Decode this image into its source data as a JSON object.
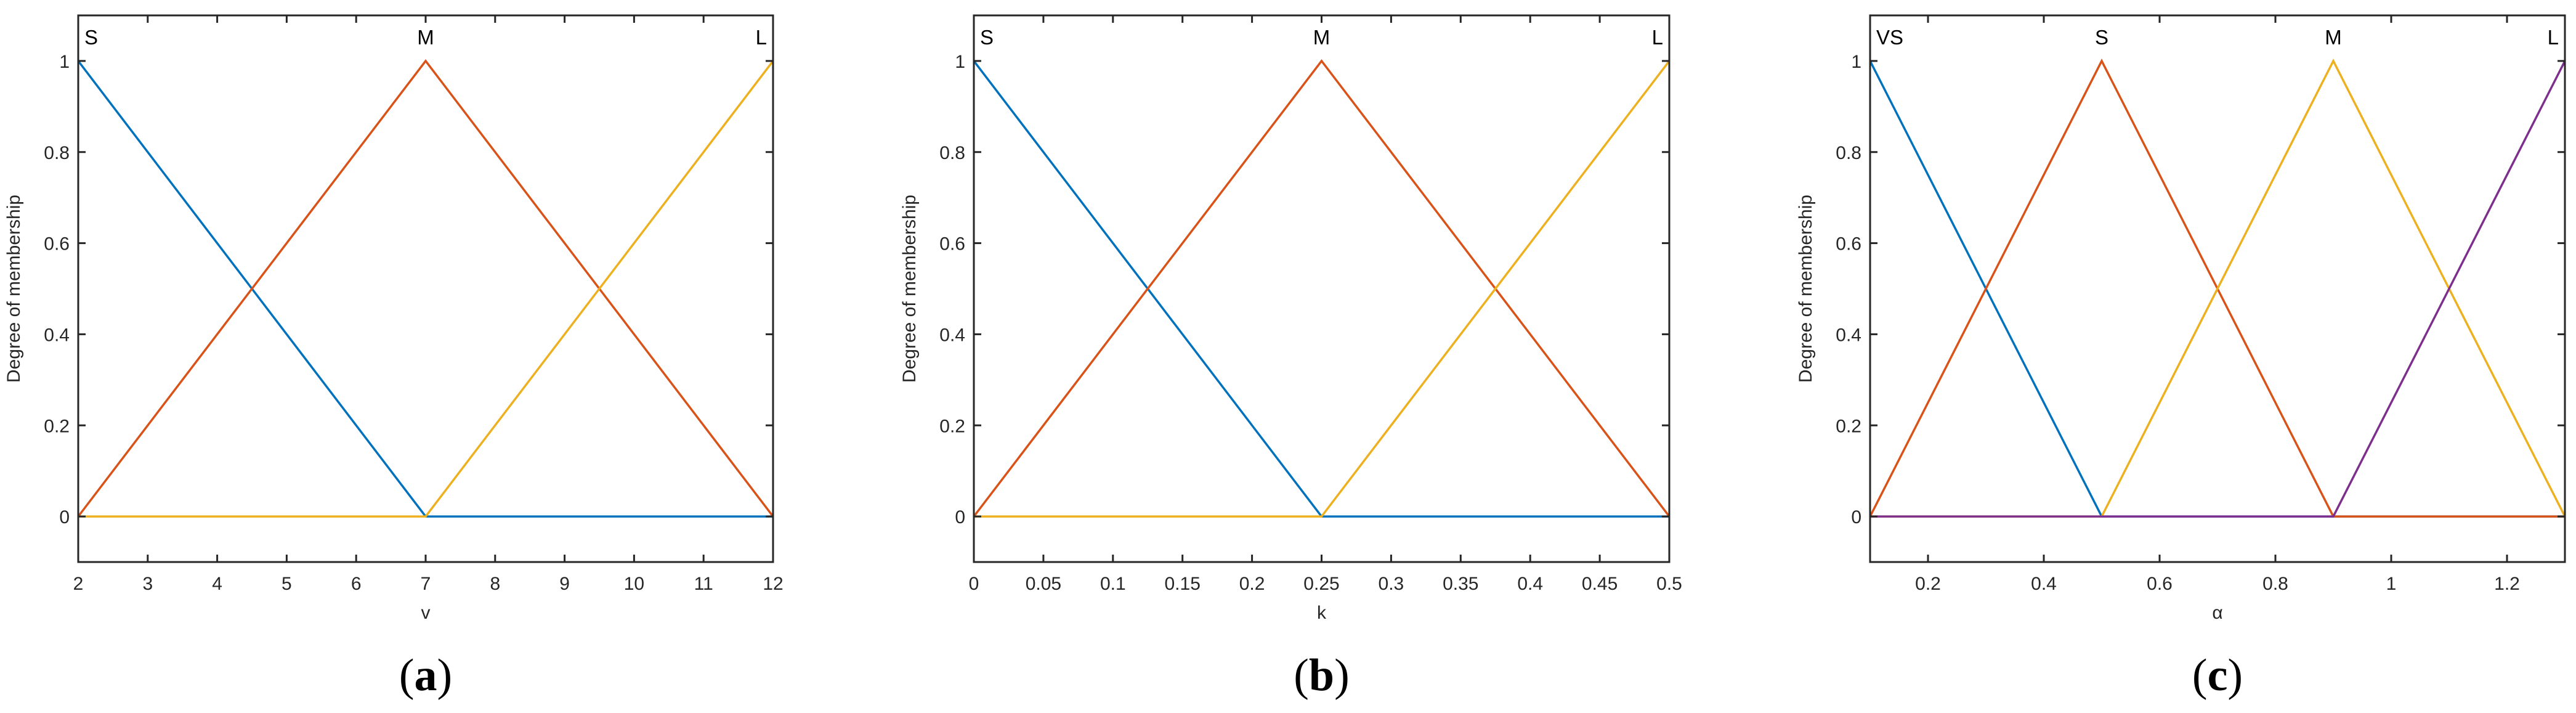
{
  "chart_data": [
    {
      "type": "line",
      "panel_label": "a",
      "xlabel": "v",
      "ylabel": "Degree of membership",
      "xlim": [
        2,
        12
      ],
      "ylim": [
        -0.1,
        1.1
      ],
      "xticks": [
        2,
        3,
        4,
        5,
        6,
        7,
        8,
        9,
        10,
        11,
        12
      ],
      "xtick_labels": [
        "2",
        "3",
        "4",
        "5",
        "6",
        "7",
        "8",
        "9",
        "10",
        "11",
        "12"
      ],
      "yticks": [
        0,
        0.2,
        0.4,
        0.6,
        0.8,
        1
      ],
      "ytick_labels": [
        "0",
        "0.2",
        "0.4",
        "0.6",
        "0.8",
        "1"
      ],
      "grid": false,
      "series": [
        {
          "name": "S",
          "color": "#0072BD",
          "x": [
            2,
            7,
            12
          ],
          "y": [
            1,
            0,
            0
          ]
        },
        {
          "name": "M",
          "color": "#D95319",
          "x": [
            2,
            7,
            12
          ],
          "y": [
            0,
            1,
            0
          ]
        },
        {
          "name": "L",
          "color": "#EDB120",
          "x": [
            2,
            7,
            12
          ],
          "y": [
            0,
            0,
            1
          ]
        }
      ]
    },
    {
      "type": "line",
      "panel_label": "b",
      "xlabel": "k",
      "ylabel": "Degree of membership",
      "xlim": [
        0,
        0.5
      ],
      "ylim": [
        -0.1,
        1.1
      ],
      "xticks": [
        0,
        0.05,
        0.1,
        0.15,
        0.2,
        0.25,
        0.3,
        0.35,
        0.4,
        0.45,
        0.5
      ],
      "xtick_labels": [
        "0",
        "0.05",
        "0.1",
        "0.15",
        "0.2",
        "0.25",
        "0.3",
        "0.35",
        "0.4",
        "0.45",
        "0.5"
      ],
      "yticks": [
        0,
        0.2,
        0.4,
        0.6,
        0.8,
        1
      ],
      "ytick_labels": [
        "0",
        "0.2",
        "0.4",
        "0.6",
        "0.8",
        "1"
      ],
      "grid": false,
      "series": [
        {
          "name": "S",
          "color": "#0072BD",
          "x": [
            0,
            0.25,
            0.5
          ],
          "y": [
            1,
            0,
            0
          ]
        },
        {
          "name": "M",
          "color": "#D95319",
          "x": [
            0,
            0.25,
            0.5
          ],
          "y": [
            0,
            1,
            0
          ]
        },
        {
          "name": "L",
          "color": "#EDB120",
          "x": [
            0,
            0.25,
            0.5
          ],
          "y": [
            0,
            0,
            1
          ]
        }
      ]
    },
    {
      "type": "line",
      "panel_label": "c",
      "xlabel": "α",
      "ylabel": "Degree of membership",
      "xlim": [
        0.1,
        1.3
      ],
      "ylim": [
        -0.1,
        1.1
      ],
      "xticks": [
        0.2,
        0.4,
        0.6,
        0.8,
        1,
        1.2
      ],
      "xtick_labels": [
        "0.2",
        "0.4",
        "0.6",
        "0.8",
        "1",
        "1.2"
      ],
      "yticks": [
        0,
        0.2,
        0.4,
        0.6,
        0.8,
        1
      ],
      "ytick_labels": [
        "0",
        "0.2",
        "0.4",
        "0.6",
        "0.8",
        "1"
      ],
      "grid": false,
      "series": [
        {
          "name": "VS",
          "color": "#0072BD",
          "x": [
            0.1,
            0.5,
            1.3
          ],
          "y": [
            1,
            0,
            0
          ]
        },
        {
          "name": "S",
          "color": "#D95319",
          "x": [
            0.1,
            0.5,
            0.9,
            1.3
          ],
          "y": [
            0,
            1,
            0,
            0
          ]
        },
        {
          "name": "M",
          "color": "#EDB120",
          "x": [
            0.1,
            0.5,
            0.9,
            1.3
          ],
          "y": [
            0,
            0,
            1,
            0
          ]
        },
        {
          "name": "L",
          "color": "#7E2F8E",
          "x": [
            0.1,
            0.9,
            1.3
          ],
          "y": [
            0,
            0,
            1
          ]
        }
      ]
    }
  ]
}
